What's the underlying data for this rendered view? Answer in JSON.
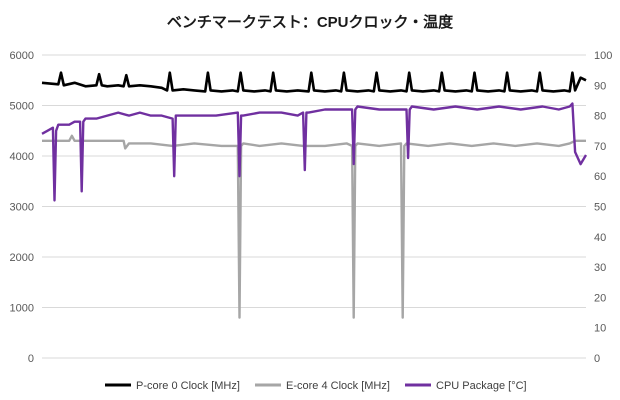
{
  "chart_data": {
    "type": "line",
    "title": "ベンチマークテスト：CPUクロック・温度",
    "y_left": {
      "ticks": [
        "0",
        "1000",
        "2000",
        "3000",
        "4000",
        "5000",
        "6000"
      ],
      "range": [
        0,
        6000
      ]
    },
    "y_right": {
      "ticks": [
        "0",
        "10",
        "20",
        "30",
        "40",
        "50",
        "60",
        "70",
        "80",
        "90",
        "100"
      ],
      "range": [
        0,
        100
      ]
    },
    "grid": true,
    "legend_position": "bottom",
    "x": {
      "range": [
        0,
        100
      ]
    },
    "series": [
      {
        "name": "P-core 0 Clock [MHz]",
        "axis": "left",
        "color": "#000000",
        "x": [
          0,
          3,
          3.5,
          4,
          6,
          8,
          10,
          10.5,
          11,
          12,
          14,
          15,
          15.5,
          16,
          18,
          20,
          22,
          23,
          23.5,
          24,
          26,
          28,
          30,
          30.5,
          31,
          33,
          35,
          36,
          36.5,
          37,
          39,
          41,
          42,
          42.5,
          43,
          45,
          47,
          49,
          49.5,
          50,
          52,
          54,
          55,
          55.5,
          56,
          58,
          60,
          61,
          61.5,
          62,
          64,
          66,
          67,
          67.5,
          68,
          70,
          72,
          73,
          73.5,
          74,
          76,
          78,
          79,
          79.5,
          80,
          82,
          84,
          85,
          85.5,
          86,
          88,
          90,
          91,
          91.5,
          92,
          94,
          96,
          97,
          97.5,
          98,
          99,
          100
        ],
        "values": [
          5450,
          5420,
          5650,
          5400,
          5450,
          5380,
          5400,
          5620,
          5400,
          5380,
          5400,
          5380,
          5600,
          5380,
          5400,
          5380,
          5350,
          5300,
          5650,
          5300,
          5320,
          5300,
          5280,
          5650,
          5300,
          5280,
          5300,
          5280,
          5650,
          5300,
          5280,
          5300,
          5280,
          5650,
          5300,
          5280,
          5300,
          5280,
          5650,
          5300,
          5280,
          5300,
          5280,
          5650,
          5300,
          5280,
          5300,
          5280,
          5650,
          5300,
          5280,
          5300,
          5280,
          5650,
          5300,
          5280,
          5300,
          5280,
          5650,
          5300,
          5280,
          5300,
          5280,
          5650,
          5300,
          5280,
          5300,
          5280,
          5650,
          5300,
          5280,
          5300,
          5280,
          5650,
          5300,
          5280,
          5300,
          5280,
          5650,
          5300,
          5550,
          5500
        ]
      },
      {
        "name": "E-core 4 Clock [MHz]",
        "axis": "left",
        "color": "#a6a6a6",
        "x": [
          0,
          5,
          5.5,
          6,
          15,
          15.3,
          16,
          20,
          24,
          28,
          33,
          36,
          36.3,
          36.6,
          37,
          40,
          44,
          48,
          52,
          56,
          57,
          57.3,
          57.6,
          58,
          62,
          66,
          66.3,
          66.6,
          67,
          71,
          75,
          79,
          83,
          87,
          91,
          95,
          97,
          98,
          100
        ],
        "values": [
          4300,
          4300,
          4400,
          4300,
          4300,
          4150,
          4250,
          4250,
          4200,
          4250,
          4200,
          4200,
          800,
          4200,
          4250,
          4200,
          4250,
          4200,
          4200,
          4250,
          4200,
          800,
          4200,
          4250,
          4200,
          4250,
          800,
          4200,
          4250,
          4200,
          4250,
          4200,
          4250,
          4200,
          4250,
          4200,
          4250,
          4300,
          4300
        ]
      },
      {
        "name": "CPU Package [°C]",
        "axis": "right",
        "color": "#7030a0",
        "x": [
          0,
          1,
          2,
          2.3,
          2.6,
          3,
          5,
          6,
          7,
          7.3,
          7.6,
          8,
          10,
          12,
          14,
          16,
          18,
          20,
          22,
          24,
          24.3,
          24.6,
          25,
          28,
          32,
          36,
          36.3,
          36.6,
          37,
          40,
          44,
          47,
          48,
          48.3,
          48.6,
          49,
          52,
          56,
          57,
          57.3,
          57.6,
          58,
          62,
          66,
          67,
          67.3,
          67.6,
          68,
          72,
          76,
          80,
          84,
          88,
          92,
          95,
          97,
          97.5,
          98,
          99,
          100
        ],
        "values": [
          74,
          75,
          76,
          52,
          75,
          77,
          77,
          78,
          78,
          55,
          78,
          79,
          79,
          80,
          81,
          80,
          81,
          80,
          80,
          79,
          60,
          80,
          80,
          80,
          80,
          81,
          60,
          80,
          80,
          81,
          81,
          80,
          81,
          62,
          81,
          81,
          82,
          82,
          82,
          64,
          82,
          83,
          82,
          82,
          82,
          66,
          82,
          83,
          82,
          83,
          82,
          83,
          82,
          83,
          82,
          83,
          84,
          68,
          64,
          67
        ]
      }
    ]
  }
}
